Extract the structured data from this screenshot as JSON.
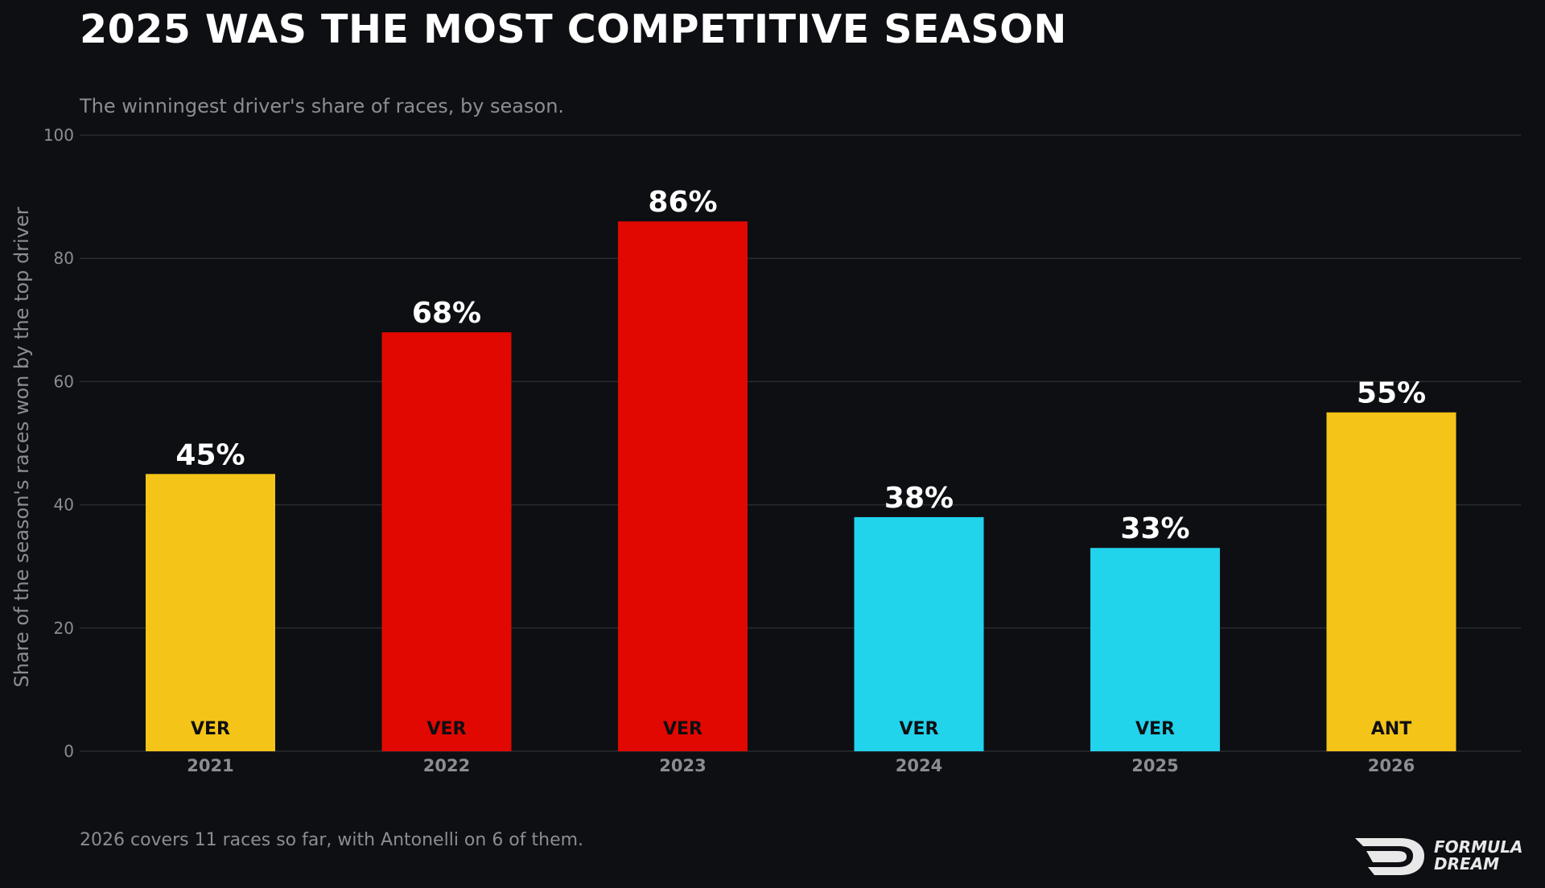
{
  "header": {
    "title": "2025 WAS THE MOST COMPETITIVE SEASON",
    "subtitle": "The winningest driver's share of races, by season."
  },
  "footnote": "2026 covers 11 races so far, with Antonelli on 6 of them.",
  "logo": {
    "line1": "FORMULA",
    "line2": "DREAM"
  },
  "colors": {
    "background": "#0e0f13",
    "gridline": "#2a2b30",
    "axis_text": "#8b8d93",
    "value_label": "#ffffff",
    "driver_label": "#0e0f13"
  },
  "chart_data": {
    "type": "bar",
    "ylabel": "Share of the season's races won by the top driver",
    "ylim": [
      0,
      100
    ],
    "yticks": [
      0,
      20,
      40,
      60,
      80,
      100
    ],
    "grid": true,
    "categories": [
      "2021",
      "2022",
      "2023",
      "2024",
      "2025",
      "2026"
    ],
    "values": [
      45,
      68,
      86,
      38,
      33,
      55
    ],
    "value_labels": [
      "45%",
      "68%",
      "86%",
      "38%",
      "33%",
      "55%"
    ],
    "drivers": [
      "VER",
      "VER",
      "VER",
      "VER",
      "VER",
      "ANT"
    ],
    "bar_colors": [
      "#f4c418",
      "#e00800",
      "#e00800",
      "#22d3ec",
      "#22d3ec",
      "#f4c418"
    ]
  }
}
